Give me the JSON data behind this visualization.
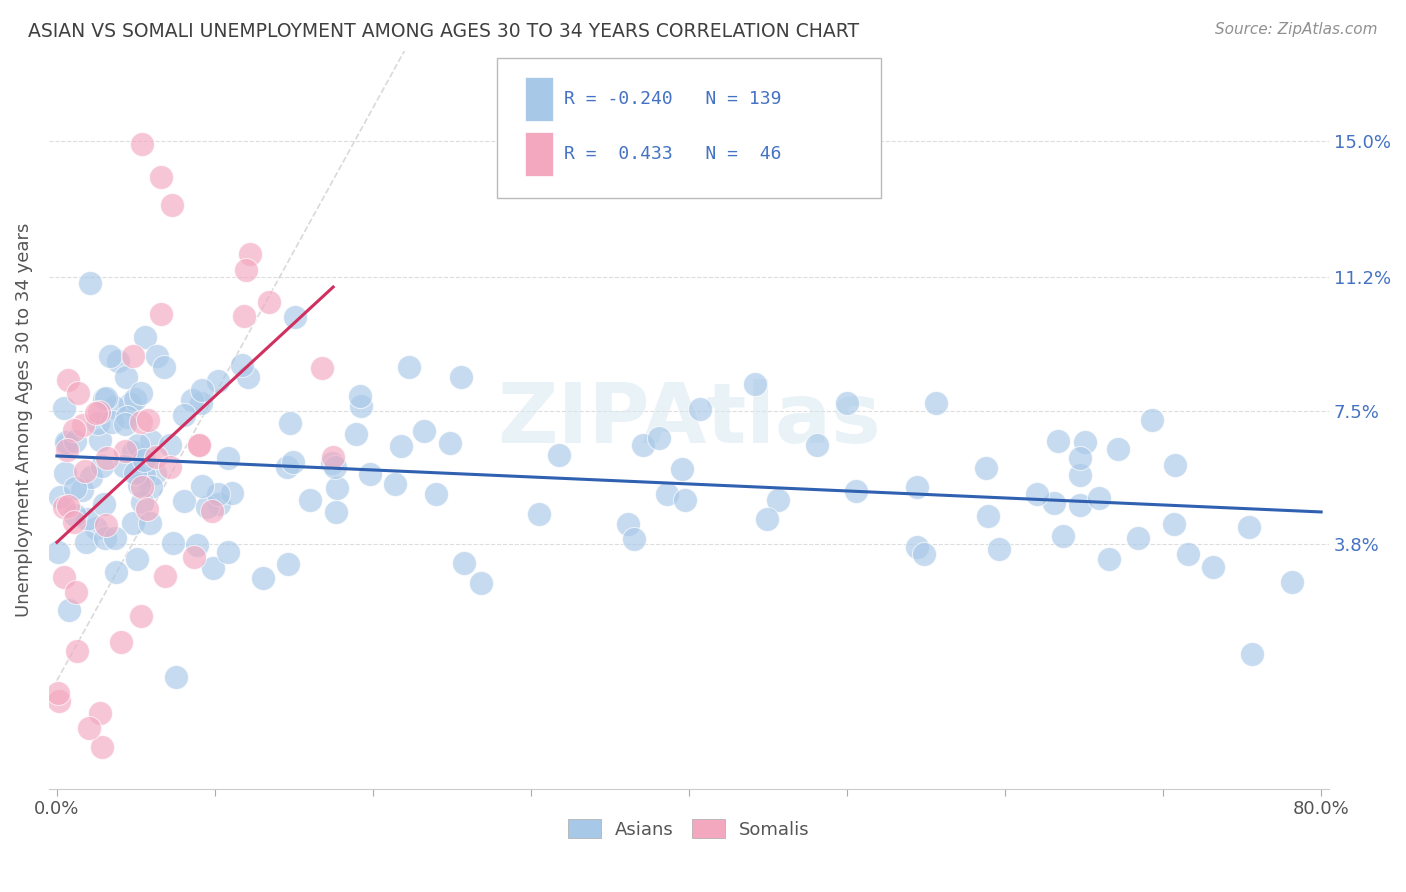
{
  "title": "ASIAN VS SOMALI UNEMPLOYMENT AMONG AGES 30 TO 34 YEARS CORRELATION CHART",
  "source": "Source: ZipAtlas.com",
  "ylabel": "Unemployment Among Ages 30 to 34 years",
  "xlim": [
    0.0,
    0.8
  ],
  "ylim": [
    -0.03,
    0.175
  ],
  "xtick_positions": [
    0.0,
    0.1,
    0.2,
    0.3,
    0.4,
    0.5,
    0.6,
    0.7,
    0.8
  ],
  "xtick_labels": [
    "0.0%",
    "",
    "",
    "",
    "",
    "",
    "",
    "",
    "80.0%"
  ],
  "ytick_positions": [
    0.038,
    0.075,
    0.112,
    0.15
  ],
  "ytick_labels": [
    "3.8%",
    "7.5%",
    "11.2%",
    "15.0%"
  ],
  "r_asian": -0.24,
  "n_asian": 139,
  "r_somali": 0.433,
  "n_somali": 46,
  "asian_color": "#a8c8e8",
  "somali_color": "#f4a8c0",
  "asian_line_color": "#3060b0",
  "somali_line_color": "#d03060",
  "ref_line_color": "#d0d0d0",
  "legend_label_asian": "Asians",
  "legend_label_somali": "Somalis",
  "watermark": "ZIPAtlas",
  "background_color": "#ffffff",
  "title_color": "#404040",
  "source_color": "#909090",
  "axis_text_color": "#555555",
  "right_tick_color": "#4472c4",
  "legend_text_color": "#4472c4"
}
